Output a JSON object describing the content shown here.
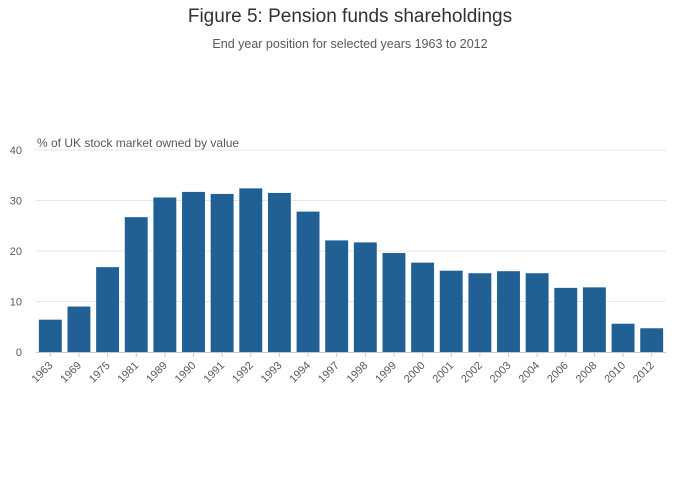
{
  "chart_data": {
    "type": "bar",
    "title": "Figure 5: Pension funds shareholdings",
    "subtitle": "End year position for selected years 1963 to 2012",
    "ylabel": "% of UK stock market owned by value",
    "xlabel": "",
    "categories": [
      "1963",
      "1969",
      "1975",
      "1981",
      "1989",
      "1990",
      "1991",
      "1992",
      "1993",
      "1994",
      "1997",
      "1998",
      "1999",
      "2000",
      "2001",
      "2002",
      "2003",
      "2004",
      "2006",
      "2008",
      "2010",
      "2012"
    ],
    "values": [
      6.4,
      9.0,
      16.8,
      26.7,
      30.6,
      31.7,
      31.3,
      32.4,
      31.5,
      27.8,
      22.1,
      21.7,
      19.6,
      17.7,
      16.1,
      15.6,
      16.0,
      15.6,
      12.7,
      12.8,
      5.6,
      4.7
    ],
    "ylim": [
      0,
      40
    ],
    "yticks": [
      0,
      10,
      20,
      30,
      40
    ],
    "grid": true,
    "bar_color": "#206095"
  }
}
